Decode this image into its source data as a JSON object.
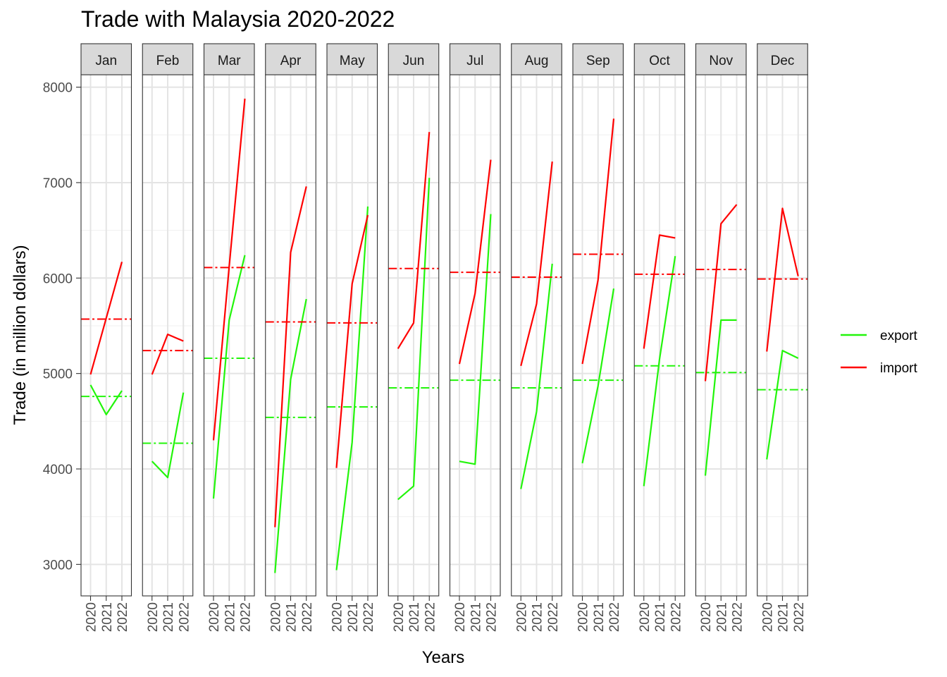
{
  "chart_data": {
    "type": "line",
    "title": "Trade with Malaysia 2020-2022",
    "xlabel": "Years",
    "ylabel": "Trade (in million dollars)",
    "facet_by": "month",
    "facets": [
      "Jan",
      "Feb",
      "Mar",
      "Apr",
      "May",
      "Jun",
      "Jul",
      "Aug",
      "Sep",
      "Oct",
      "Nov",
      "Dec"
    ],
    "x": [
      "2020",
      "2021",
      "2022"
    ],
    "ylim": [
      2670,
      8130
    ],
    "yticks": [
      3000,
      4000,
      5000,
      6000,
      7000,
      8000
    ],
    "grid": true,
    "legend": "right",
    "series": [
      {
        "name": "export",
        "color": "#22f50a",
        "values": [
          [
            4880,
            4570,
            4820
          ],
          [
            4080,
            3910,
            4800
          ],
          [
            3690,
            5560,
            6240
          ],
          [
            2910,
            4940,
            5780
          ],
          [
            2940,
            4280,
            6750
          ],
          [
            3680,
            3820,
            7050
          ],
          [
            4080,
            4050,
            6670
          ],
          [
            3790,
            4600,
            6150
          ],
          [
            4060,
            4870,
            5890
          ],
          [
            3820,
            5150,
            6230
          ],
          [
            3930,
            5560,
            5560
          ],
          [
            4100,
            5240,
            5160
          ]
        ],
        "mean_line": [
          4760,
          4270,
          5160,
          4540,
          4650,
          4850,
          4930,
          4850,
          4930,
          5080,
          5010,
          4830
        ]
      },
      {
        "name": "import",
        "color": "#ff0000",
        "values": [
          [
            4990,
            5580,
            6170
          ],
          [
            4990,
            5410,
            5340
          ],
          [
            4300,
            6120,
            7880
          ],
          [
            3390,
            6270,
            6960
          ],
          [
            4010,
            5940,
            6660
          ],
          [
            5260,
            5530,
            7530
          ],
          [
            5100,
            5840,
            7240
          ],
          [
            5080,
            5730,
            7220
          ],
          [
            5100,
            5980,
            7670
          ],
          [
            5260,
            6450,
            6420
          ],
          [
            4920,
            6570,
            6770
          ],
          [
            5230,
            6730,
            6020
          ]
        ],
        "mean_line": [
          5570,
          5240,
          6110,
          5540,
          5530,
          6100,
          6060,
          6010,
          6250,
          6040,
          6090,
          5990
        ]
      }
    ]
  }
}
